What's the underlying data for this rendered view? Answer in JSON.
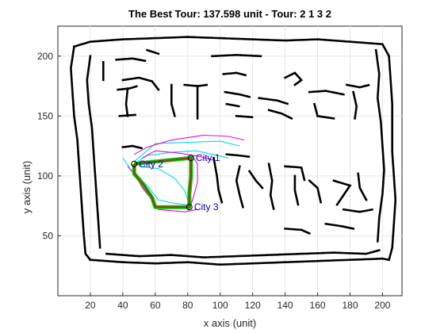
{
  "chart_data": {
    "type": "line",
    "title": "The Best Tour: 137.598 unit - Tour: 2  1  3  2",
    "xlabel": "x axis (unit)",
    "ylabel": "y axis (unit)",
    "xlim": [
      0,
      212
    ],
    "ylim": [
      0,
      225
    ],
    "xticks": [
      20,
      40,
      60,
      80,
      100,
      120,
      140,
      160,
      180,
      200
    ],
    "yticks": [
      50,
      100,
      150,
      200
    ],
    "grid": true,
    "colors": {
      "obstacle": "#000000",
      "tour_outer": "#00cc00",
      "tour_inner": "#8b4513",
      "explore_cyan": "#00dddd",
      "explore_magenta": "#ee00ee",
      "city_label": "#0000cc",
      "grid": "#e6e6e6"
    },
    "cities": [
      {
        "label": "City 1",
        "x": 82,
        "y": 115
      },
      {
        "label": "City 2",
        "x": 47,
        "y": 110
      },
      {
        "label": "City 3",
        "x": 81,
        "y": 74
      }
    ],
    "tour_order": [
      2,
      1,
      3,
      2
    ],
    "tour_path": [
      [
        47,
        110
      ],
      [
        60,
        112
      ],
      [
        75,
        114
      ],
      [
        82,
        115
      ],
      [
        82,
        100
      ],
      [
        81,
        85
      ],
      [
        81,
        74
      ],
      [
        70,
        74
      ],
      [
        60,
        74
      ],
      [
        58,
        82
      ],
      [
        52,
        94
      ],
      [
        47,
        102
      ],
      [
        47,
        110
      ]
    ],
    "explore_cyan": [
      [
        [
          47,
          112
        ],
        [
          60,
          127
        ],
        [
          80,
          128
        ],
        [
          100,
          129
        ],
        [
          112,
          125
        ]
      ],
      [
        [
          47,
          110
        ],
        [
          55,
          117
        ],
        [
          72,
          120
        ],
        [
          85,
          121
        ],
        [
          95,
          118
        ],
        [
          105,
          115
        ]
      ],
      [
        [
          40,
          115
        ],
        [
          45,
          105
        ],
        [
          55,
          92
        ],
        [
          62,
          80
        ],
        [
          72,
          77
        ],
        [
          80,
          76
        ]
      ],
      [
        [
          50,
          108
        ],
        [
          62,
          106
        ],
        [
          72,
          98
        ],
        [
          78,
          88
        ],
        [
          80,
          80
        ]
      ]
    ],
    "explore_magenta": [
      [
        [
          43,
          108
        ],
        [
          48,
          100
        ],
        [
          52,
          90
        ],
        [
          58,
          80
        ],
        [
          62,
          72
        ],
        [
          78,
          70
        ],
        [
          86,
          72
        ]
      ],
      [
        [
          47,
          118
        ],
        [
          55,
          124
        ],
        [
          70,
          130
        ],
        [
          90,
          134
        ],
        [
          105,
          133
        ],
        [
          115,
          130
        ]
      ],
      [
        [
          82,
          118
        ],
        [
          86,
          110
        ],
        [
          86,
          95
        ],
        [
          84,
          85
        ],
        [
          82,
          76
        ]
      ],
      [
        [
          52,
          115
        ],
        [
          60,
          121
        ],
        [
          75,
          119
        ],
        [
          88,
          116
        ],
        [
          96,
          113
        ]
      ]
    ],
    "obstacles": [
      [
        [
          10,
          208
        ],
        [
          20,
          212
        ],
        [
          40,
          214
        ],
        [
          60,
          215
        ],
        [
          80,
          216
        ],
        [
          100,
          215
        ],
        [
          120,
          214
        ],
        [
          140,
          213
        ],
        [
          160,
          214
        ],
        [
          180,
          212
        ],
        [
          200,
          210
        ],
        [
          204,
          200
        ],
        [
          205,
          180
        ],
        [
          206,
          160
        ],
        [
          206,
          140
        ],
        [
          206,
          120
        ],
        [
          207,
          100
        ],
        [
          208,
          80
        ],
        [
          207,
          60
        ],
        [
          206,
          40
        ],
        [
          204,
          30
        ]
      ],
      [
        [
          10,
          208
        ],
        [
          8,
          190
        ],
        [
          9,
          170
        ],
        [
          10,
          150
        ],
        [
          12,
          130
        ],
        [
          13,
          110
        ],
        [
          14,
          90
        ],
        [
          15,
          70
        ],
        [
          16,
          50
        ],
        [
          17,
          35
        ],
        [
          20,
          30
        ]
      ],
      [
        [
          20,
          30
        ],
        [
          40,
          28
        ],
        [
          60,
          27
        ],
        [
          80,
          28
        ],
        [
          100,
          26
        ],
        [
          120,
          27
        ],
        [
          140,
          28
        ],
        [
          160,
          29
        ],
        [
          180,
          30
        ],
        [
          200,
          31
        ],
        [
          204,
          30
        ]
      ],
      [
        [
          30,
          35
        ],
        [
          50,
          33
        ],
        [
          70,
          34
        ],
        [
          90,
          32
        ],
        [
          110,
          33
        ],
        [
          130,
          34
        ],
        [
          150,
          35
        ],
        [
          170,
          36
        ],
        [
          190,
          35
        ],
        [
          198,
          38
        ]
      ],
      [
        [
          20,
          200
        ],
        [
          18,
          180
        ],
        [
          19,
          160
        ],
        [
          21,
          140
        ],
        [
          22,
          120
        ],
        [
          23,
          100
        ],
        [
          24,
          80
        ],
        [
          25,
          60
        ],
        [
          26,
          40
        ]
      ],
      [
        [
          196,
          205
        ],
        [
          198,
          185
        ],
        [
          197,
          165
        ],
        [
          199,
          145
        ],
        [
          200,
          125
        ],
        [
          201,
          105
        ],
        [
          200,
          85
        ],
        [
          198,
          65
        ],
        [
          197,
          45
        ]
      ],
      [
        [
          37,
          172
        ],
        [
          44,
          173
        ],
        [
          49,
          175
        ]
      ],
      [
        [
          43,
          173
        ],
        [
          42,
          160
        ],
        [
          43,
          150
        ]
      ],
      [
        [
          38,
          150
        ],
        [
          48,
          151
        ]
      ],
      [
        [
          28,
          195
        ],
        [
          28,
          180
        ]
      ],
      [
        [
          36,
          197
        ],
        [
          46,
          198
        ],
        [
          54,
          196
        ]
      ],
      [
        [
          70,
          176
        ],
        [
          70,
          160
        ],
        [
          72,
          150
        ]
      ],
      [
        [
          78,
          176
        ],
        [
          86,
          175
        ],
        [
          92,
          176
        ]
      ],
      [
        [
          86,
          175
        ],
        [
          86,
          160
        ],
        [
          86,
          148
        ]
      ],
      [
        [
          103,
          170
        ],
        [
          112,
          168
        ],
        [
          118,
          166
        ]
      ],
      [
        [
          104,
          160
        ],
        [
          112,
          158
        ]
      ],
      [
        [
          110,
          150
        ],
        [
          120,
          149
        ]
      ],
      [
        [
          124,
          165
        ],
        [
          135,
          163
        ],
        [
          142,
          160
        ]
      ],
      [
        [
          130,
          155
        ],
        [
          138,
          152
        ],
        [
          144,
          148
        ]
      ],
      [
        [
          155,
          170
        ],
        [
          165,
          171
        ],
        [
          176,
          168
        ]
      ],
      [
        [
          158,
          160
        ],
        [
          160,
          150
        ],
        [
          170,
          148
        ]
      ],
      [
        [
          178,
          176
        ],
        [
          186,
          174
        ],
        [
          192,
          176
        ]
      ],
      [
        [
          182,
          170
        ],
        [
          184,
          158
        ],
        [
          183,
          148
        ]
      ],
      [
        [
          140,
          182
        ],
        [
          146,
          186
        ],
        [
          150,
          180
        ],
        [
          146,
          176
        ]
      ],
      [
        [
          95,
          200
        ],
        [
          110,
          201
        ],
        [
          125,
          200
        ]
      ],
      [
        [
          55,
          205
        ],
        [
          62,
          202
        ]
      ],
      [
        [
          96,
          115
        ],
        [
          98,
          100
        ],
        [
          99,
          88
        ],
        [
          101,
          78
        ]
      ],
      [
        [
          104,
          118
        ],
        [
          112,
          117
        ],
        [
          118,
          116
        ]
      ],
      [
        [
          112,
          108
        ],
        [
          110,
          96
        ],
        [
          112,
          84
        ],
        [
          114,
          74
        ]
      ],
      [
        [
          118,
          104
        ],
        [
          122,
          96
        ],
        [
          126,
          90
        ]
      ],
      [
        [
          130,
          110
        ],
        [
          132,
          96
        ],
        [
          131,
          84
        ],
        [
          133,
          72
        ]
      ],
      [
        [
          140,
          108
        ],
        [
          150,
          107
        ],
        [
          152,
          96
        ]
      ],
      [
        [
          146,
          100
        ],
        [
          146,
          88
        ],
        [
          148,
          76
        ]
      ],
      [
        [
          155,
          96
        ],
        [
          160,
          90
        ],
        [
          162,
          78
        ]
      ],
      [
        [
          170,
          96
        ],
        [
          180,
          92
        ],
        [
          176,
          84
        ],
        [
          172,
          76
        ]
      ],
      [
        [
          176,
          72
        ],
        [
          186,
          70
        ],
        [
          194,
          72
        ]
      ],
      [
        [
          185,
          102
        ],
        [
          186,
          90
        ],
        [
          190,
          80
        ]
      ],
      [
        [
          40,
          124
        ],
        [
          46,
          125
        ],
        [
          52,
          123
        ]
      ],
      [
        [
          40,
          180
        ],
        [
          50,
          182
        ],
        [
          58,
          179
        ],
        [
          62,
          172
        ]
      ],
      [
        [
          102,
          185
        ],
        [
          110,
          186
        ],
        [
          116,
          184
        ]
      ],
      [
        [
          165,
          60
        ],
        [
          175,
          58
        ],
        [
          182,
          56
        ]
      ],
      [
        [
          140,
          56
        ],
        [
          150,
          55
        ],
        [
          155,
          52
        ]
      ]
    ]
  }
}
